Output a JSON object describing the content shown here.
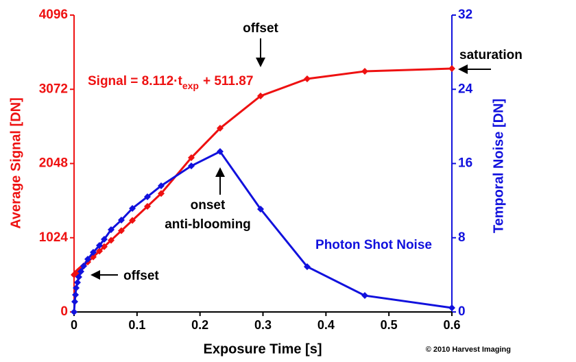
{
  "chart_data": {
    "type": "line",
    "xlabel": "Exposure Time [s]",
    "ylabel": "Average Signal [DN]",
    "y2label": "Temporal Noise [DN]",
    "x": [
      0,
      0.0011,
      0.0022,
      0.0033,
      0.0054,
      0.0076,
      0.0109,
      0.0152,
      0.0218,
      0.0305,
      0.0403,
      0.0479,
      0.0588,
      0.0751,
      0.0926,
      0.1165,
      0.1383,
      0.1862,
      0.2319,
      0.2962,
      0.3702,
      0.4617,
      0.6
    ],
    "series": [
      {
        "color": "#ee1111",
        "values": [
          512,
          521,
          530,
          539,
          556,
          574,
          600,
          635,
          689,
          759,
          839,
          901,
          989,
          1121,
          1263,
          1457,
          1634,
          2128,
          2535,
          2980,
          3216,
          3320,
          3358
        ]
      },
      {
        "name": "Photon Shot Noise",
        "color": "#1111dd",
        "axis": "y2",
        "values": [
          0,
          1.11,
          1.85,
          2.59,
          3.18,
          3.77,
          4.36,
          4.95,
          5.69,
          6.43,
          7.17,
          7.83,
          8.87,
          9.9,
          11.16,
          12.42,
          13.6,
          15.74,
          17.29,
          11.09,
          4.88,
          1.77,
          0.44
        ]
      }
    ],
    "xlim": [
      0,
      0.6
    ],
    "xticks": [
      0,
      0.1,
      0.2,
      0.3,
      0.4,
      0.5,
      0.6
    ],
    "ylim": [
      0,
      4096
    ],
    "yticks": [
      0,
      1024,
      2048,
      3072,
      4096
    ],
    "y2lim": [
      0,
      32
    ],
    "y2ticks": [
      0,
      8,
      16,
      24,
      32
    ],
    "grid": false,
    "annotations": [
      "offset",
      "saturation",
      "onset",
      "anti-blooming",
      "offset"
    ],
    "formula": [
      "Signal = 8.112·t",
      "exp",
      "+ 511.87"
    ],
    "copyright": "© 2010 Harvest Imaging"
  }
}
